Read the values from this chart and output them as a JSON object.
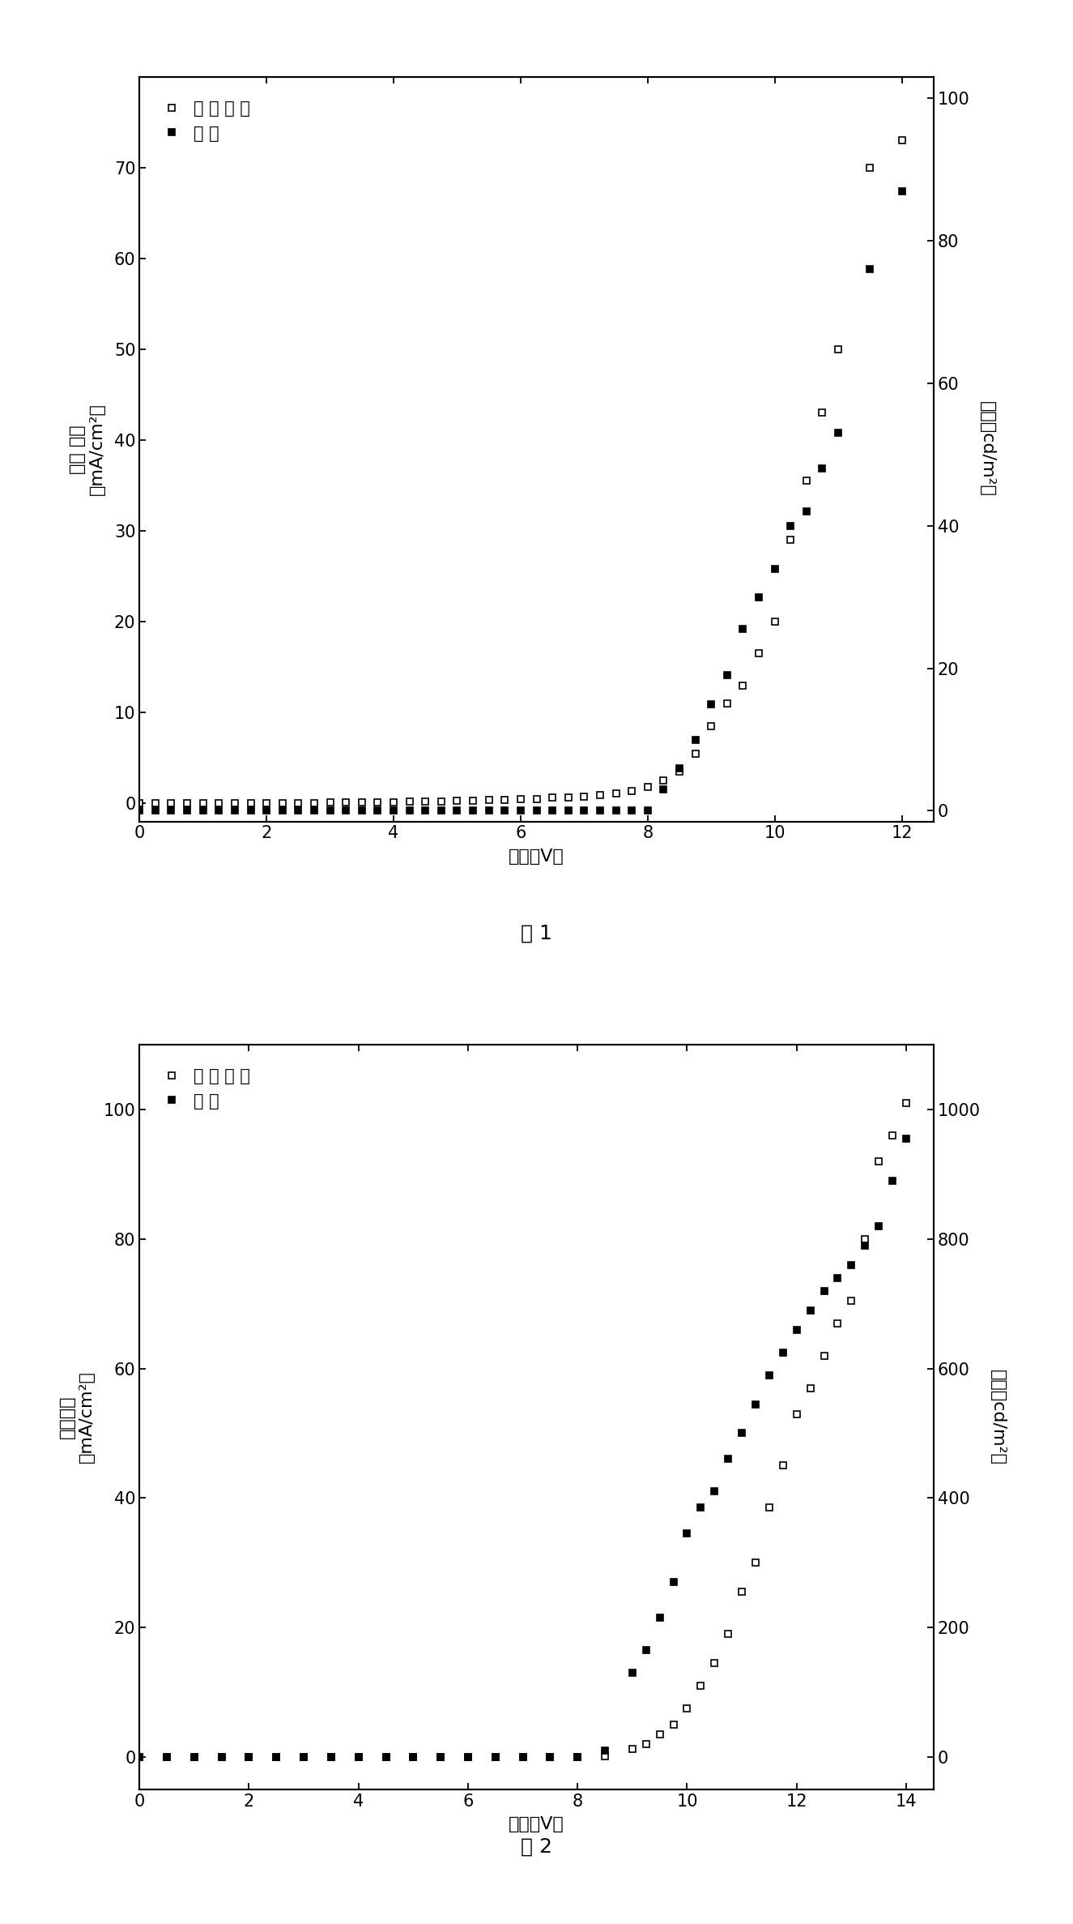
{
  "fig1": {
    "title_label": "图 1",
    "xlabel": "电压（V）",
    "ylabel_left_line1": "电流 密度",
    "ylabel_left_line2": "（mA/cm²）",
    "ylabel_right_line1": "亮度（cd/m²）",
    "xlim": [
      0,
      12.5
    ],
    "ylim_left": [
      -2,
      80
    ],
    "ylim_right": [
      -1.5,
      103
    ],
    "xticks": [
      0,
      2,
      4,
      6,
      8,
      10,
      12
    ],
    "yticks_left": [
      0,
      10,
      20,
      30,
      40,
      50,
      60,
      70
    ],
    "yticks_right": [
      0,
      20,
      40,
      60,
      80,
      100
    ],
    "cd_x": [
      0.0,
      0.25,
      0.5,
      0.75,
      1.0,
      1.25,
      1.5,
      1.75,
      2.0,
      2.25,
      2.5,
      2.75,
      3.0,
      3.25,
      3.5,
      3.75,
      4.0,
      4.25,
      4.5,
      4.75,
      5.0,
      5.25,
      5.5,
      5.75,
      6.0,
      6.25,
      6.5,
      6.75,
      7.0,
      7.25,
      7.5,
      7.75,
      8.0,
      8.25,
      8.5,
      8.75,
      9.0,
      9.25,
      9.5,
      9.75,
      10.0,
      10.25,
      10.5,
      10.75,
      11.0,
      11.5,
      12.0
    ],
    "cd_y": [
      0.0,
      0.0,
      0.0,
      0.0,
      0.0,
      0.0,
      0.0,
      0.0,
      0.0,
      0.0,
      0.05,
      0.05,
      0.08,
      0.1,
      0.1,
      0.12,
      0.15,
      0.18,
      0.2,
      0.22,
      0.25,
      0.3,
      0.35,
      0.4,
      0.45,
      0.5,
      0.6,
      0.65,
      0.75,
      0.9,
      1.1,
      1.4,
      1.8,
      2.5,
      3.5,
      5.5,
      8.5,
      11.0,
      13.0,
      16.5,
      20.0,
      29.0,
      35.5,
      43.0,
      50.0,
      70.0,
      73.0
    ],
    "lum_x": [
      0.0,
      0.25,
      0.5,
      0.75,
      1.0,
      1.25,
      1.5,
      1.75,
      2.0,
      2.25,
      2.5,
      2.75,
      3.0,
      3.25,
      3.5,
      3.75,
      4.0,
      4.25,
      4.5,
      4.75,
      5.0,
      5.25,
      5.5,
      5.75,
      6.0,
      6.25,
      6.5,
      6.75,
      7.0,
      7.25,
      7.5,
      7.75,
      8.0,
      8.25,
      8.5,
      8.75,
      9.0,
      9.25,
      9.5,
      9.75,
      10.0,
      10.25,
      10.5,
      10.75,
      11.0,
      11.5,
      12.0
    ],
    "lum_y": [
      0.0,
      0.0,
      0.0,
      0.0,
      0.0,
      0.0,
      0.0,
      0.0,
      0.0,
      0.0,
      0.0,
      0.0,
      0.0,
      0.0,
      0.0,
      0.0,
      0.0,
      0.0,
      0.0,
      0.0,
      0.0,
      0.0,
      0.0,
      0.0,
      0.0,
      0.0,
      0.0,
      0.0,
      0.0,
      0.0,
      0.0,
      0.0,
      0.0,
      3.0,
      6.0,
      10.0,
      15.0,
      19.0,
      25.5,
      30.0,
      34.0,
      40.0,
      42.0,
      48.0,
      53.0,
      76.0,
      87.0
    ],
    "legend1": "电 流 密 度",
    "legend2": "亮 度"
  },
  "fig2": {
    "title_label": "图 2",
    "xlabel": "电压（V）",
    "ylabel_left_line1": "电流密度",
    "ylabel_left_line2": "（mA/cm²）",
    "ylabel_right_line1": "亮度（cd/m²）",
    "xlim": [
      0,
      14.5
    ],
    "ylim_left": [
      -5,
      110
    ],
    "ylim_right": [
      -50,
      1100
    ],
    "xticks": [
      0,
      2,
      4,
      6,
      8,
      10,
      12,
      14
    ],
    "yticks_left": [
      0,
      20,
      40,
      60,
      80,
      100
    ],
    "yticks_right": [
      0,
      200,
      400,
      600,
      800,
      1000
    ],
    "cd_x": [
      0.0,
      0.5,
      1.0,
      1.5,
      2.0,
      2.5,
      3.0,
      3.5,
      4.0,
      4.5,
      5.0,
      5.5,
      6.0,
      6.5,
      7.0,
      7.5,
      8.0,
      8.5,
      9.0,
      9.25,
      9.5,
      9.75,
      10.0,
      10.25,
      10.5,
      10.75,
      11.0,
      11.25,
      11.5,
      11.75,
      12.0,
      12.25,
      12.5,
      12.75,
      13.0,
      13.25,
      13.5,
      13.75,
      14.0
    ],
    "cd_y": [
      0.0,
      0.0,
      0.0,
      0.0,
      0.0,
      0.0,
      0.0,
      0.0,
      0.0,
      0.0,
      0.0,
      0.0,
      0.0,
      0.0,
      0.0,
      0.0,
      0.0,
      0.1,
      1.2,
      2.0,
      3.5,
      5.0,
      7.5,
      11.0,
      14.5,
      19.0,
      25.5,
      30.0,
      38.5,
      45.0,
      53.0,
      57.0,
      62.0,
      67.0,
      70.5,
      80.0,
      92.0,
      96.0,
      101.0
    ],
    "lum_x": [
      0.0,
      0.5,
      1.0,
      1.5,
      2.0,
      2.5,
      3.0,
      3.5,
      4.0,
      4.5,
      5.0,
      5.5,
      6.0,
      6.5,
      7.0,
      7.5,
      8.0,
      8.5,
      9.0,
      9.25,
      9.5,
      9.75,
      10.0,
      10.25,
      10.5,
      10.75,
      11.0,
      11.25,
      11.5,
      11.75,
      12.0,
      12.25,
      12.5,
      12.75,
      13.0,
      13.25,
      13.5,
      13.75,
      14.0
    ],
    "lum_y": [
      0.0,
      0.0,
      0.0,
      0.0,
      0.0,
      0.0,
      0.0,
      0.0,
      0.0,
      0.0,
      0.0,
      0.0,
      0.0,
      0.0,
      0.0,
      0.0,
      0.0,
      10.0,
      130.0,
      165.0,
      215.0,
      270.0,
      345.0,
      385.0,
      410.0,
      460.0,
      500.0,
      545.0,
      590.0,
      625.0,
      660.0,
      690.0,
      720.0,
      740.0,
      760.0,
      790.0,
      820.0,
      890.0,
      955.0
    ],
    "legend1": "电 流 密 度",
    "legend2": "亮 度"
  },
  "bg_color": "#ffffff",
  "marker_size": 6,
  "tick_fontsize": 15,
  "label_fontsize": 16,
  "legend_fontsize": 15,
  "caption_fontsize": 18
}
